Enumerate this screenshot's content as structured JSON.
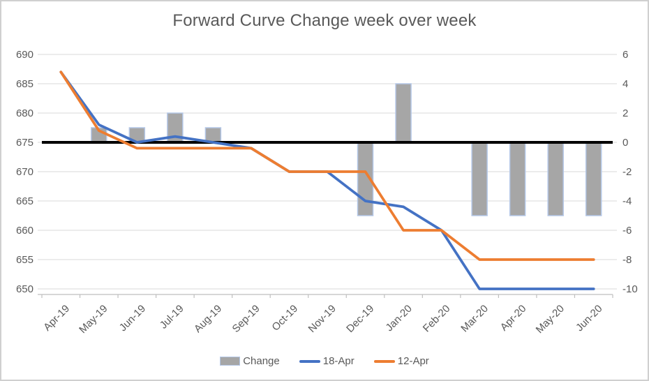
{
  "title": "Forward Curve Change week over week",
  "colors": {
    "bar_fill": "#a6a6a6",
    "bar_border": "#b4c7e7",
    "line_18apr": "#4472c4",
    "line_12apr": "#ed7d31",
    "reference_line": "#000000",
    "gridline": "#d9d9d9",
    "axis_line": "#bfbfbf",
    "text": "#595959",
    "frame_border": "#cfcfcf"
  },
  "chart_data": {
    "type": "combo",
    "title": "Forward Curve Change week over week",
    "categories": [
      "Apr-19",
      "May-19",
      "Jun-19",
      "Jul-19",
      "Aug-19",
      "Sep-19",
      "Oct-19",
      "Nov-19",
      "Dec-19",
      "Jan-20",
      "Feb-20",
      "Mar-20",
      "Apr-20",
      "May-20",
      "Jun-20"
    ],
    "series": [
      {
        "name": "Change",
        "type": "bar",
        "axis": "right",
        "color": "#a6a6a6",
        "values": [
          0,
          1,
          1,
          2,
          1,
          0,
          0,
          0,
          -5,
          4,
          0,
          -5,
          -5,
          -5,
          -5
        ]
      },
      {
        "name": "18-Apr",
        "type": "line",
        "axis": "left",
        "color": "#4472c4",
        "values": [
          687,
          678,
          675,
          676,
          675,
          674,
          670,
          670,
          665,
          664,
          660,
          650,
          650,
          650,
          650
        ]
      },
      {
        "name": "12-Apr",
        "type": "line",
        "axis": "left",
        "color": "#ed7d31",
        "values": [
          687,
          677,
          674,
          674,
          674,
          674,
          670,
          670,
          670,
          660,
          660,
          655,
          655,
          655,
          655
        ]
      }
    ],
    "left_axis": {
      "min": 650,
      "max": 690,
      "step": 5,
      "ticks": [
        650,
        655,
        660,
        665,
        670,
        675,
        680,
        685,
        690
      ]
    },
    "right_axis": {
      "min": -10,
      "max": 6,
      "step": 2,
      "ticks": [
        -10,
        -8,
        -6,
        -4,
        -2,
        0,
        2,
        4,
        6
      ]
    },
    "reference_line": {
      "axis": "right",
      "value": 0,
      "color": "#000000",
      "width": 4
    },
    "grid": true,
    "legend_position": "bottom"
  }
}
